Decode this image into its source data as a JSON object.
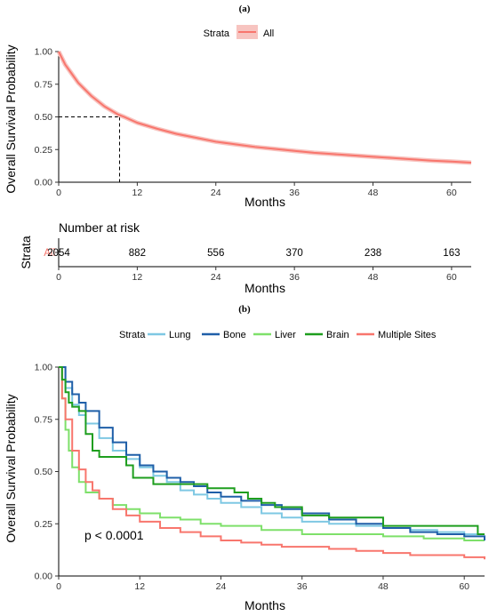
{
  "panel_a": {
    "label": "(a)",
    "legend": {
      "title": "Strata",
      "entries": [
        {
          "name": "All",
          "color": "#f8766d"
        }
      ]
    },
    "median_survival_months": 9.3,
    "risk_table": {
      "title": "Number at risk",
      "ylabel": "Strata",
      "xlabel": "Months",
      "row_label": "All",
      "times": [
        0,
        12,
        24,
        36,
        48,
        60
      ],
      "values": [
        "2054",
        "882",
        "556",
        "370",
        "238",
        "163"
      ]
    }
  },
  "panel_b": {
    "label": "(b)",
    "legend": {
      "title": "Strata",
      "entries": [
        {
          "name": "Lung",
          "color": "#7ec8e3"
        },
        {
          "name": "Bone",
          "color": "#1f5fa8"
        },
        {
          "name": "Liver",
          "color": "#7ee06a"
        },
        {
          "name": "Brain",
          "color": "#1e9e1e"
        },
        {
          "name": "Multiple Sites",
          "color": "#f8766d"
        }
      ]
    },
    "annotation": "p < 0.0001"
  },
  "chart_data": [
    {
      "type": "line",
      "title": "",
      "xlabel": "Months",
      "ylabel": "Overall Survival Probability",
      "xlim": [
        0,
        63
      ],
      "ylim": [
        0,
        1
      ],
      "xticks": [
        0,
        12,
        24,
        36,
        48,
        60
      ],
      "yticks": [
        "0.00",
        "0.25",
        "0.50",
        "0.75",
        "1.00"
      ],
      "grid": false,
      "legend_position": "top",
      "series": [
        {
          "name": "All",
          "color": "#f8766d",
          "x": [
            0,
            1,
            2,
            3,
            4,
            5,
            6,
            7,
            8,
            9,
            10,
            12,
            15,
            18,
            21,
            24,
            27,
            30,
            33,
            36,
            39,
            42,
            45,
            48,
            51,
            54,
            57,
            60,
            63
          ],
          "y": [
            1.0,
            0.9,
            0.83,
            0.76,
            0.71,
            0.66,
            0.62,
            0.58,
            0.55,
            0.52,
            0.5,
            0.455,
            0.41,
            0.37,
            0.34,
            0.31,
            0.29,
            0.27,
            0.255,
            0.24,
            0.225,
            0.215,
            0.205,
            0.195,
            0.185,
            0.175,
            0.165,
            0.158,
            0.15
          ]
        }
      ]
    },
    {
      "type": "line",
      "title": "",
      "xlabel": "Months",
      "ylabel": "Overall Survival Probability",
      "xlim": [
        0,
        63
      ],
      "ylim": [
        0,
        1
      ],
      "xticks": [
        0,
        12,
        24,
        36,
        48,
        60
      ],
      "yticks": [
        "0.00",
        "0.25",
        "0.50",
        "0.75",
        "1.00"
      ],
      "grid": false,
      "legend_position": "top",
      "series": [
        {
          "name": "Lung",
          "color": "#7ec8e3",
          "x": [
            0,
            1,
            2,
            3,
            4,
            6,
            8,
            10,
            12,
            14,
            16,
            18,
            20,
            22,
            24,
            27,
            30,
            33,
            36,
            40,
            44,
            48,
            52,
            56,
            60,
            63
          ],
          "y": [
            1.0,
            0.9,
            0.82,
            0.77,
            0.73,
            0.66,
            0.6,
            0.56,
            0.52,
            0.48,
            0.45,
            0.41,
            0.39,
            0.37,
            0.35,
            0.33,
            0.3,
            0.28,
            0.26,
            0.25,
            0.24,
            0.23,
            0.22,
            0.21,
            0.2,
            0.2
          ]
        },
        {
          "name": "Bone",
          "color": "#1f5fa8",
          "x": [
            0,
            1,
            2,
            3,
            4,
            6,
            8,
            10,
            12,
            14,
            16,
            18,
            20,
            22,
            24,
            27,
            30,
            33,
            36,
            40,
            44,
            48,
            52,
            56,
            60,
            63
          ],
          "y": [
            1.0,
            0.93,
            0.87,
            0.83,
            0.79,
            0.71,
            0.64,
            0.58,
            0.53,
            0.5,
            0.47,
            0.45,
            0.43,
            0.4,
            0.38,
            0.36,
            0.34,
            0.32,
            0.3,
            0.27,
            0.25,
            0.23,
            0.21,
            0.2,
            0.19,
            0.17
          ]
        },
        {
          "name": "Liver",
          "color": "#7ee06a",
          "x": [
            0,
            0.5,
            1,
            1.5,
            2,
            3,
            4,
            6,
            8,
            10,
            12,
            15,
            18,
            21,
            24,
            30,
            36,
            42,
            48,
            54,
            60,
            63
          ],
          "y": [
            1.0,
            0.85,
            0.7,
            0.6,
            0.52,
            0.45,
            0.4,
            0.37,
            0.34,
            0.32,
            0.3,
            0.28,
            0.27,
            0.25,
            0.24,
            0.22,
            0.2,
            0.2,
            0.19,
            0.18,
            0.17,
            0.17
          ]
        },
        {
          "name": "Brain",
          "color": "#1e9e1e",
          "x": [
            0,
            0.5,
            1,
            1.5,
            2,
            3,
            4,
            5,
            6,
            8,
            10,
            11,
            12,
            14,
            16,
            18,
            20,
            22,
            24,
            26,
            28,
            30,
            32,
            36,
            40,
            44,
            48,
            54,
            60,
            62,
            63
          ],
          "y": [
            1.0,
            0.94,
            0.88,
            0.83,
            0.81,
            0.79,
            0.68,
            0.6,
            0.57,
            0.57,
            0.53,
            0.47,
            0.47,
            0.44,
            0.44,
            0.44,
            0.44,
            0.42,
            0.42,
            0.4,
            0.37,
            0.35,
            0.33,
            0.29,
            0.28,
            0.28,
            0.24,
            0.24,
            0.24,
            0.2,
            0.2
          ]
        },
        {
          "name": "Multiple Sites",
          "color": "#f8766d",
          "x": [
            0,
            0.5,
            1,
            2,
            3,
            4,
            5,
            6,
            8,
            10,
            12,
            15,
            18,
            21,
            24,
            27,
            30,
            33,
            36,
            40,
            44,
            48,
            52,
            56,
            60,
            63
          ],
          "y": [
            1.0,
            0.85,
            0.75,
            0.6,
            0.51,
            0.45,
            0.41,
            0.37,
            0.32,
            0.29,
            0.26,
            0.23,
            0.21,
            0.19,
            0.17,
            0.16,
            0.15,
            0.14,
            0.14,
            0.13,
            0.12,
            0.11,
            0.1,
            0.1,
            0.09,
            0.08
          ]
        }
      ]
    }
  ]
}
